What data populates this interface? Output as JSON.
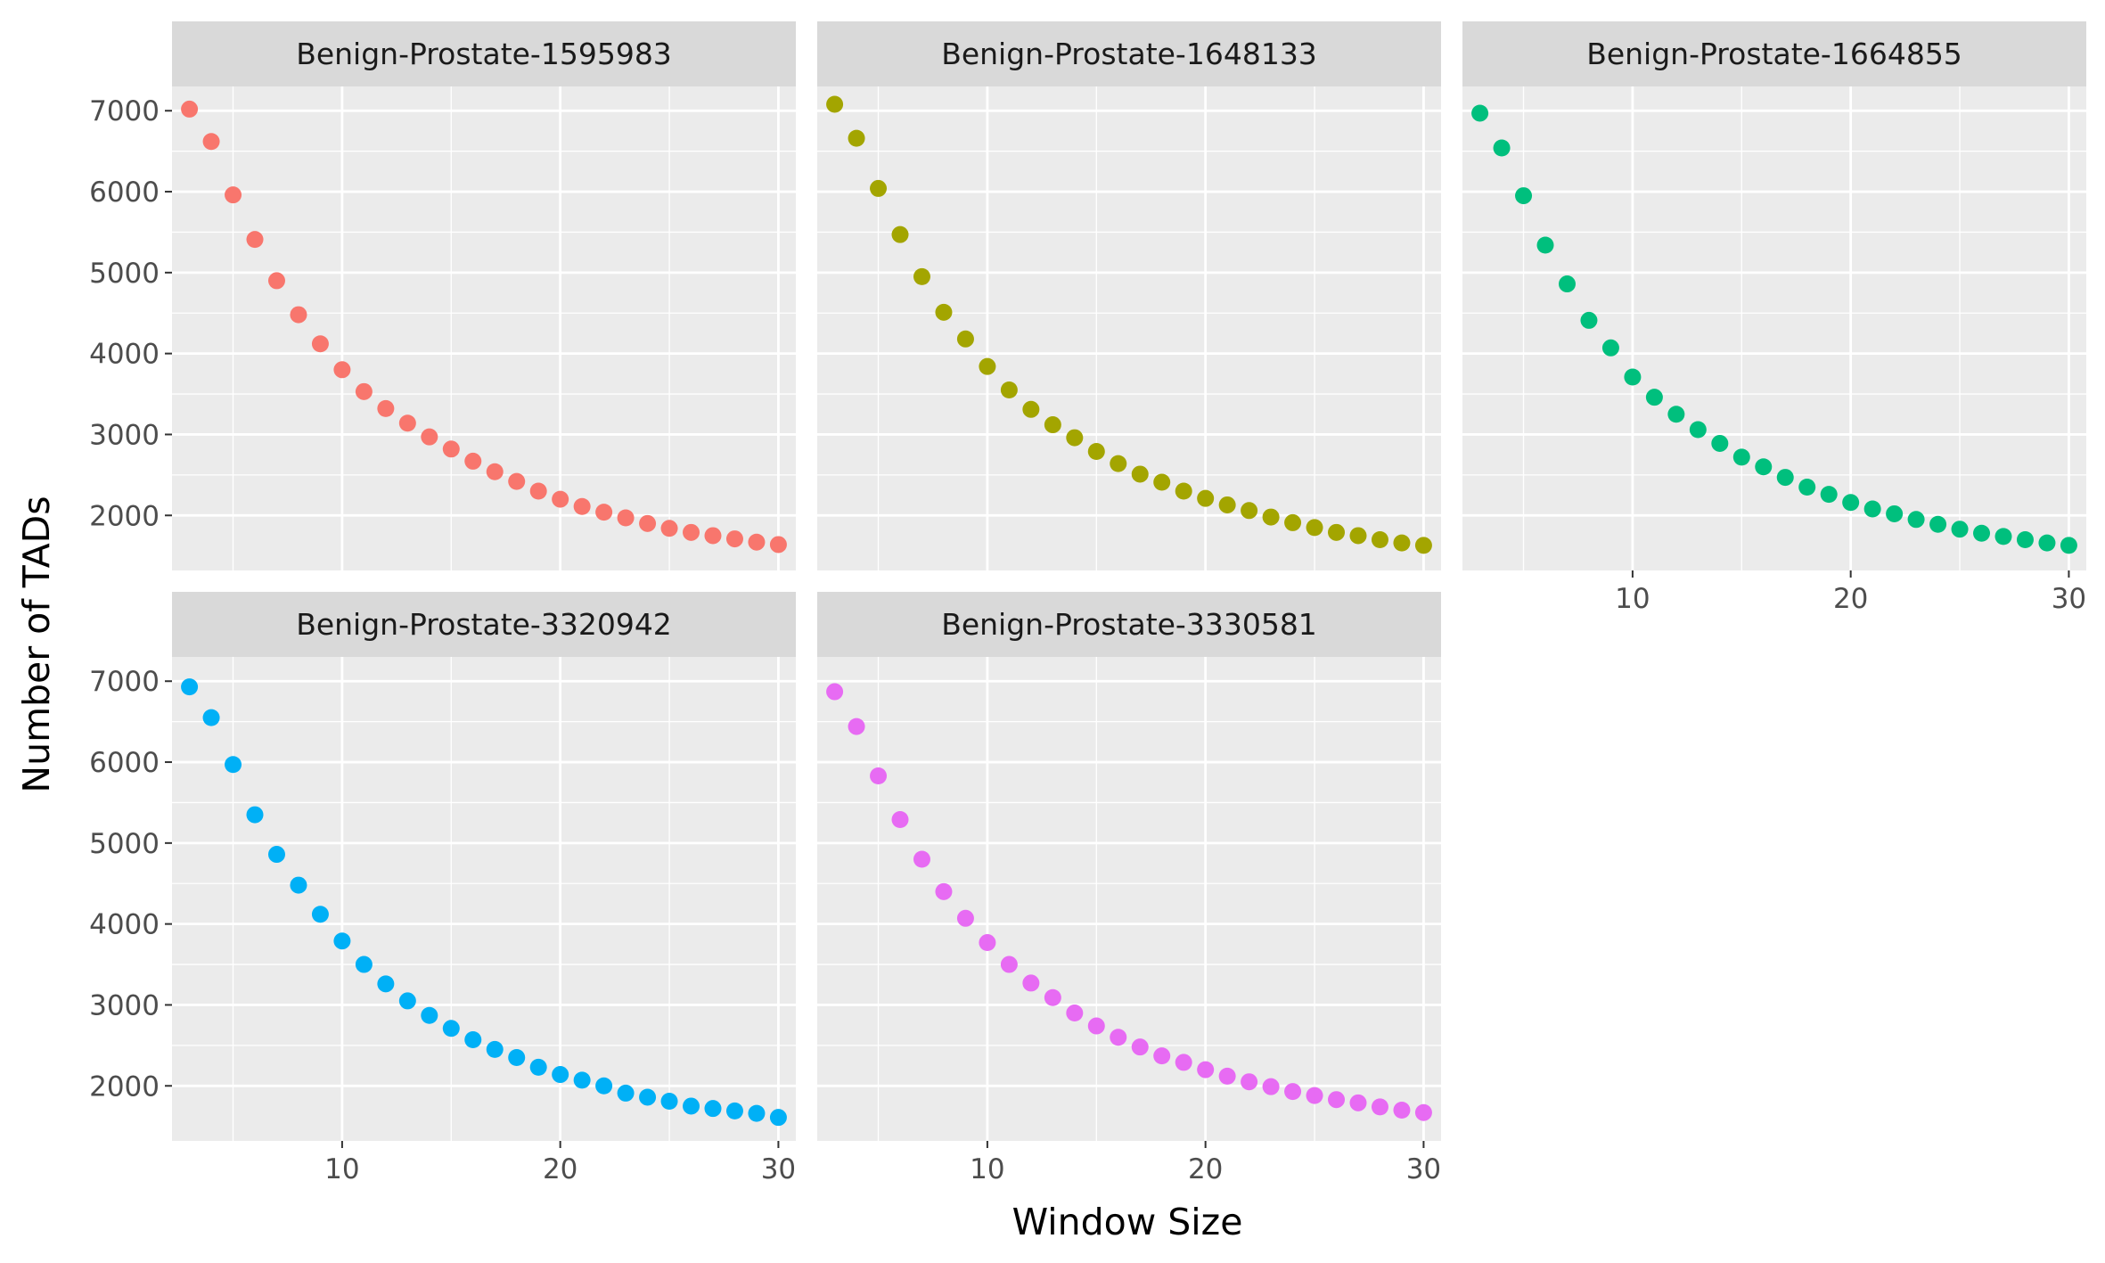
{
  "chart_data": {
    "type": "scatter",
    "xlabel": "Window Size",
    "ylabel": "Number of TADs",
    "xlim": [
      2.2,
      30.8
    ],
    "ylim": [
      1320,
      7300
    ],
    "x_ticks": [
      10,
      20,
      30
    ],
    "y_ticks": [
      2000,
      3000,
      4000,
      5000,
      6000,
      7000
    ],
    "grid": true,
    "layout": "facet-wrap 3 columns, 2 rows",
    "x": [
      3,
      4,
      5,
      6,
      7,
      8,
      9,
      10,
      11,
      12,
      13,
      14,
      15,
      16,
      17,
      18,
      19,
      20,
      21,
      22,
      23,
      24,
      25,
      26,
      27,
      28,
      29,
      30
    ],
    "panels": [
      {
        "label": "Benign-Prostate-1595983",
        "color": "#F8766D",
        "values": [
          7020,
          6620,
          5960,
          5410,
          4900,
          4480,
          4120,
          3800,
          3530,
          3320,
          3140,
          2970,
          2820,
          2670,
          2540,
          2420,
          2300,
          2200,
          2110,
          2040,
          1970,
          1900,
          1840,
          1790,
          1750,
          1710,
          1670,
          1640
        ]
      },
      {
        "label": "Benign-Prostate-1648133",
        "color": "#A3A500",
        "values": [
          7080,
          6660,
          6040,
          5470,
          4950,
          4510,
          4180,
          3840,
          3550,
          3310,
          3120,
          2960,
          2790,
          2640,
          2510,
          2410,
          2300,
          2210,
          2130,
          2060,
          1980,
          1910,
          1850,
          1790,
          1750,
          1700,
          1660,
          1630
        ]
      },
      {
        "label": "Benign-Prostate-1664855",
        "color": "#00BF7D",
        "values": [
          6970,
          6540,
          5950,
          5340,
          4860,
          4410,
          4070,
          3710,
          3460,
          3250,
          3060,
          2890,
          2720,
          2600,
          2470,
          2350,
          2260,
          2160,
          2080,
          2020,
          1950,
          1890,
          1830,
          1780,
          1740,
          1700,
          1660,
          1630
        ]
      },
      {
        "label": "Benign-Prostate-3320942",
        "color": "#00B0F6",
        "values": [
          6930,
          6550,
          5970,
          5350,
          4860,
          4480,
          4120,
          3790,
          3500,
          3260,
          3050,
          2870,
          2710,
          2570,
          2450,
          2350,
          2230,
          2140,
          2070,
          2000,
          1910,
          1860,
          1810,
          1750,
          1720,
          1690,
          1660,
          1610
        ]
      },
      {
        "label": "Benign-Prostate-3330581",
        "color": "#E76BF3",
        "values": [
          6870,
          6440,
          5830,
          5290,
          4800,
          4400,
          4070,
          3770,
          3500,
          3270,
          3090,
          2900,
          2740,
          2600,
          2480,
          2370,
          2290,
          2200,
          2120,
          2050,
          1990,
          1930,
          1880,
          1830,
          1790,
          1740,
          1700,
          1670
        ]
      }
    ]
  }
}
